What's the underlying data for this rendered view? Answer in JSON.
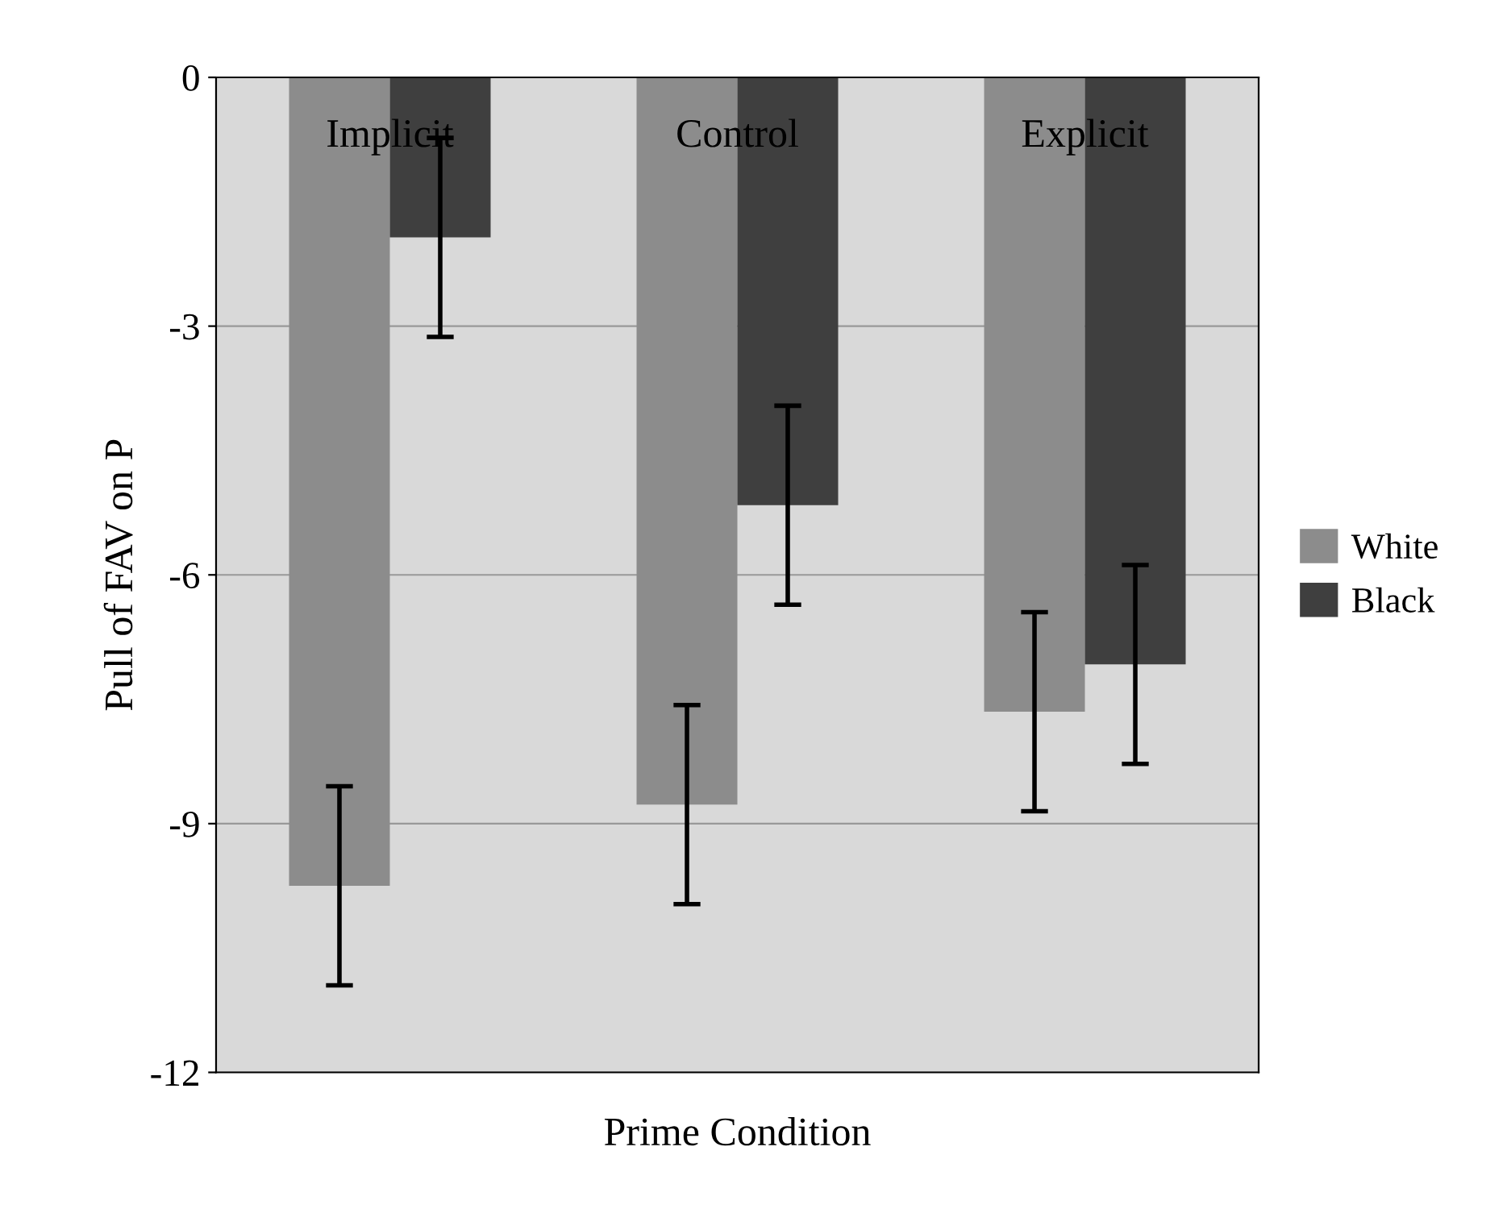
{
  "chart_data": {
    "type": "bar",
    "xlabel": "Prime Condition",
    "ylabel": "Pull of FAV on P",
    "categories": [
      "Implicit",
      "Control",
      "Explicit"
    ],
    "series": [
      {
        "name": "White",
        "color": "#8c8c8c",
        "values": [
          -9.75,
          -8.77,
          -7.65
        ],
        "errors": [
          1.2,
          1.2,
          1.2
        ]
      },
      {
        "name": "Black",
        "color": "#3f3f3f",
        "values": [
          -1.93,
          -5.16,
          -7.08
        ],
        "errors": [
          1.2,
          1.2,
          1.2
        ]
      }
    ],
    "ylim": [
      -12,
      0
    ],
    "yticks": [
      {
        "value": 0,
        "label": "0"
      },
      {
        "value": -3,
        "label": "-3"
      },
      {
        "value": -6,
        "label": "-6"
      },
      {
        "value": -9,
        "label": "-9"
      },
      {
        "value": -12,
        "label": "-12"
      }
    ],
    "grid": "y",
    "legend": "right"
  }
}
